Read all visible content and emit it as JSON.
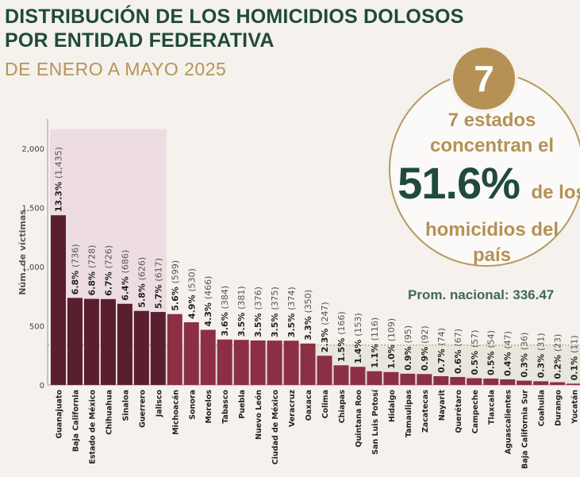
{
  "header": {
    "title_line1": "DISTRIBUCIÓN DE LOS HOMICIDIOS DOLOSOS",
    "title_line2": "POR ENTIDAD FEDERATIVA",
    "subtitle": "DE ENERO A MAYO 2025"
  },
  "highlight": {
    "badge_number": "7",
    "line1": "7 estados",
    "line2": "concentran el",
    "big_pct": "51.6%",
    "big_tail": "de los",
    "line4": "homicidios del",
    "line5": "país"
  },
  "average": {
    "label": "Prom. nacional: 336.47",
    "value": 336.47
  },
  "colors": {
    "top_bar": "#5a1f2f",
    "rest_bar": "#8c2f44",
    "top_band": "#eddde2",
    "below_avg_band": "#e9e6dc",
    "title": "#1f4a3c",
    "accent_gold": "#b59155"
  },
  "chart_data": {
    "type": "bar",
    "ylabel": "Núm. de víctimas",
    "ylim": [
      0,
      2250
    ],
    "yticks": [
      0,
      500,
      1000,
      1500,
      2000
    ],
    "ytick_labels": [
      "0",
      "500",
      "1,000",
      "1,500",
      "2,000"
    ],
    "top_count": 7,
    "categories": [
      "Guanajuato",
      "Baja California",
      "Estado de México",
      "Chihuahua",
      "Sinaloa",
      "Guerrero",
      "Jalisco",
      "Michoacán",
      "Sonora",
      "Morelos",
      "Tabasco",
      "Puebla",
      "Nuevo León",
      "Ciudad de México",
      "Veracruz",
      "Oaxaca",
      "Colima",
      "Chiapas",
      "Quintana Roo",
      "San Luis Potosí",
      "Hidalgo",
      "Tamaulipas",
      "Zacatecas",
      "Nayarit",
      "Querétaro",
      "Campeche",
      "Tlaxcala",
      "Aguascalientes",
      "Baja California Sur",
      "Coahuila",
      "Durango",
      "Yucatán"
    ],
    "values": [
      1435,
      736,
      728,
      726,
      686,
      626,
      617,
      599,
      530,
      466,
      384,
      381,
      376,
      375,
      374,
      350,
      247,
      166,
      153,
      116,
      109,
      95,
      92,
      74,
      67,
      57,
      54,
      47,
      36,
      31,
      23,
      11
    ],
    "pct_labels": [
      "13.3%",
      "6.8%",
      "6.8%",
      "6.7%",
      "6.4%",
      "5.8%",
      "5.7%",
      "5.6%",
      "4.9%",
      "4.3%",
      "3.6%",
      "3.5%",
      "3.5%",
      "3.5%",
      "3.5%",
      "3.3%",
      "2.3%",
      "1.5%",
      "1.4%",
      "1.1%",
      "1.0%",
      "0.9%",
      "0.9%",
      "0.7%",
      "0.6%",
      "0.5%",
      "0.5%",
      "0.4%",
      "0.3%",
      "0.3%",
      "0.2%",
      "0.1%"
    ],
    "count_labels": [
      "(1,435)",
      "(736)",
      "(728)",
      "(726)",
      "(686)",
      "(626)",
      "(617)",
      "(599)",
      "(530)",
      "(466)",
      "(384)",
      "(381)",
      "(376)",
      "(375)",
      "(374)",
      "(350)",
      "(247)",
      "(166)",
      "(153)",
      "(116)",
      "(109)",
      "(95)",
      "(92)",
      "(74)",
      "(67)",
      "(57)",
      "(54)",
      "(47)",
      "(36)",
      "(31)",
      "(23)",
      "(11)"
    ]
  }
}
